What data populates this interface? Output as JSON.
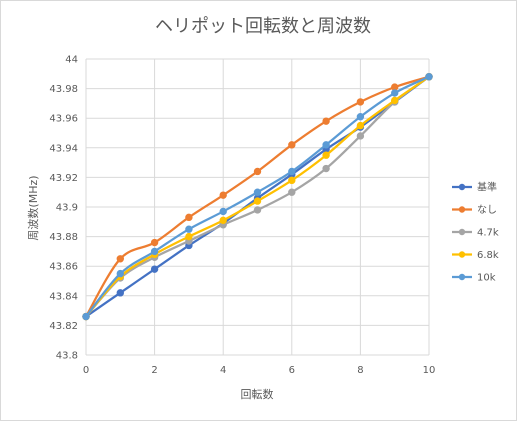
{
  "chart_data": {
    "type": "line",
    "title": "ヘリポット回転数と周波数",
    "xlabel": "回転数",
    "ylabel": "周波数(MHz)",
    "xlim": [
      0,
      10
    ],
    "ylim": [
      43.8,
      44
    ],
    "x_ticks": [
      "0",
      "2",
      "4",
      "6",
      "8",
      "10"
    ],
    "y_ticks": [
      "43.8",
      "43.82",
      "43.84",
      "43.86",
      "43.88",
      "43.9",
      "43.92",
      "43.94",
      "43.96",
      "43.98",
      "44"
    ],
    "grid": true,
    "smooth": true,
    "legend_position": "right",
    "x": [
      0,
      1,
      2,
      3,
      4,
      5,
      6,
      7,
      8,
      9,
      10
    ],
    "series": [
      {
        "name": "基準",
        "color": "#4472C4",
        "values": [
          43.826,
          43.842,
          43.858,
          43.874,
          43.889,
          43.906,
          43.922,
          43.939,
          43.954,
          43.971,
          43.988
        ]
      },
      {
        "name": "なし",
        "color": "#ED7D31",
        "values": [
          43.826,
          43.865,
          43.876,
          43.893,
          43.908,
          43.924,
          43.942,
          43.958,
          43.971,
          43.981,
          43.988
        ]
      },
      {
        "name": "4.7k",
        "color": "#A5A5A5",
        "values": [
          43.826,
          43.852,
          43.866,
          43.877,
          43.888,
          43.898,
          43.91,
          43.926,
          43.948,
          43.971,
          43.988
        ]
      },
      {
        "name": "6.8k",
        "color": "#FFC000",
        "values": [
          43.826,
          43.853,
          43.868,
          43.88,
          43.891,
          43.904,
          43.918,
          43.935,
          43.955,
          43.972,
          43.988
        ]
      },
      {
        "name": "10k",
        "color": "#5B9BD5",
        "values": [
          43.826,
          43.855,
          43.87,
          43.885,
          43.897,
          43.91,
          43.924,
          43.942,
          43.961,
          43.977,
          43.988
        ]
      }
    ]
  }
}
